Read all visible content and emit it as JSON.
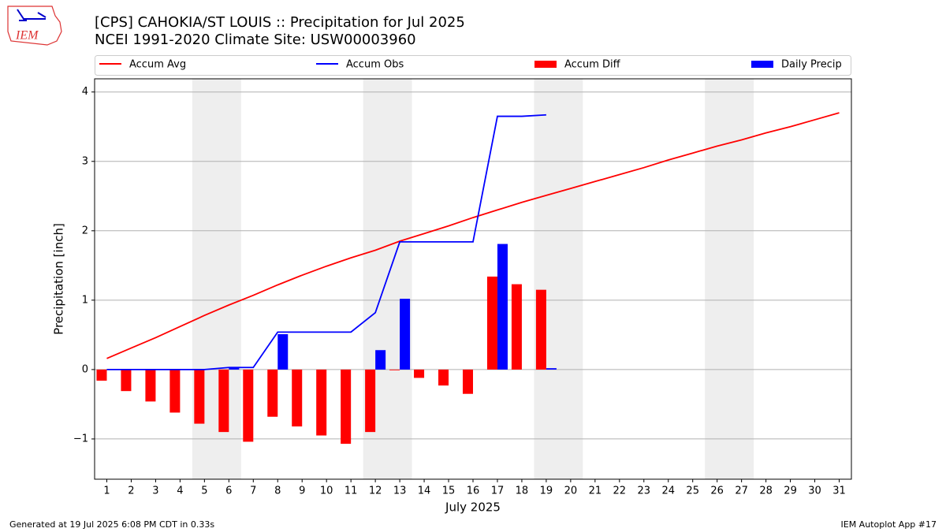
{
  "header": {
    "logo_text": "IEM"
  },
  "chart_data": {
    "type": "combo",
    "title": "[CPS] CAHOKIA/ST LOUIS :: Precipitation for Jul 2025",
    "subtitle": "NCEI 1991-2020 Climate Site: USW00003960",
    "x_label": "July 2025",
    "y_label": "Precipitation [inch]",
    "x": [
      1,
      2,
      3,
      4,
      5,
      6,
      7,
      8,
      9,
      10,
      11,
      12,
      13,
      14,
      15,
      16,
      17,
      18,
      19,
      20,
      21,
      22,
      23,
      24,
      25,
      26,
      27,
      28,
      29,
      30,
      31
    ],
    "xlim": [
      0.5,
      31.5
    ],
    "ylim": [
      -1.58,
      4.19
    ],
    "yticks": [
      {
        "value": -1,
        "label": "−1"
      },
      0,
      1,
      2,
      3,
      4
    ],
    "grid": true,
    "weekend_spans": [
      [
        4.5,
        6.5
      ],
      [
        11.5,
        13.5
      ],
      [
        18.5,
        20.5
      ],
      [
        25.5,
        27.5
      ]
    ],
    "series": [
      {
        "name": "Accum Avg",
        "type": "line",
        "color": "#ff0000",
        "values": [
          0.16,
          0.31,
          0.46,
          0.62,
          0.78,
          0.93,
          1.07,
          1.22,
          1.36,
          1.49,
          1.61,
          1.72,
          1.85,
          1.96,
          2.07,
          2.19,
          2.3,
          2.41,
          2.51,
          2.61,
          2.71,
          2.81,
          2.91,
          3.02,
          3.12,
          3.22,
          3.31,
          3.41,
          3.5,
          3.6,
          3.7
        ]
      },
      {
        "name": "Accum Obs",
        "type": "line",
        "color": "#0000ff",
        "values": [
          0,
          0,
          0,
          0,
          0,
          0.03,
          0.03,
          0.54,
          0.54,
          0.54,
          0.54,
          0.82,
          1.84,
          1.84,
          1.84,
          1.84,
          3.65,
          3.65,
          3.67,
          null,
          null,
          null,
          null,
          null,
          null,
          null,
          null,
          null,
          null,
          null,
          null
        ]
      },
      {
        "name": "Accum Diff",
        "type": "bar",
        "color": "#ff0000",
        "values": [
          -0.16,
          -0.31,
          -0.46,
          -0.62,
          -0.78,
          -0.9,
          -1.04,
          -0.68,
          -0.82,
          -0.95,
          -1.07,
          -0.9,
          -0.01,
          -0.12,
          -0.23,
          -0.35,
          1.34,
          1.23,
          1.15,
          null,
          null,
          null,
          null,
          null,
          null,
          null,
          null,
          null,
          null,
          null,
          null
        ]
      },
      {
        "name": "Daily Precip",
        "type": "bar",
        "color": "#0000ff",
        "values": [
          0,
          0,
          0,
          0,
          0,
          0.03,
          0,
          0.51,
          0,
          0,
          0,
          0.28,
          1.02,
          0,
          0,
          0,
          1.81,
          0,
          0.02,
          null,
          null,
          null,
          null,
          null,
          null,
          null,
          null,
          null,
          null,
          null,
          null
        ]
      }
    ]
  },
  "footer": {
    "left": "Generated at 19 Jul 2025 6:08 PM CDT in 0.33s",
    "right": "IEM Autoplot App #17"
  }
}
